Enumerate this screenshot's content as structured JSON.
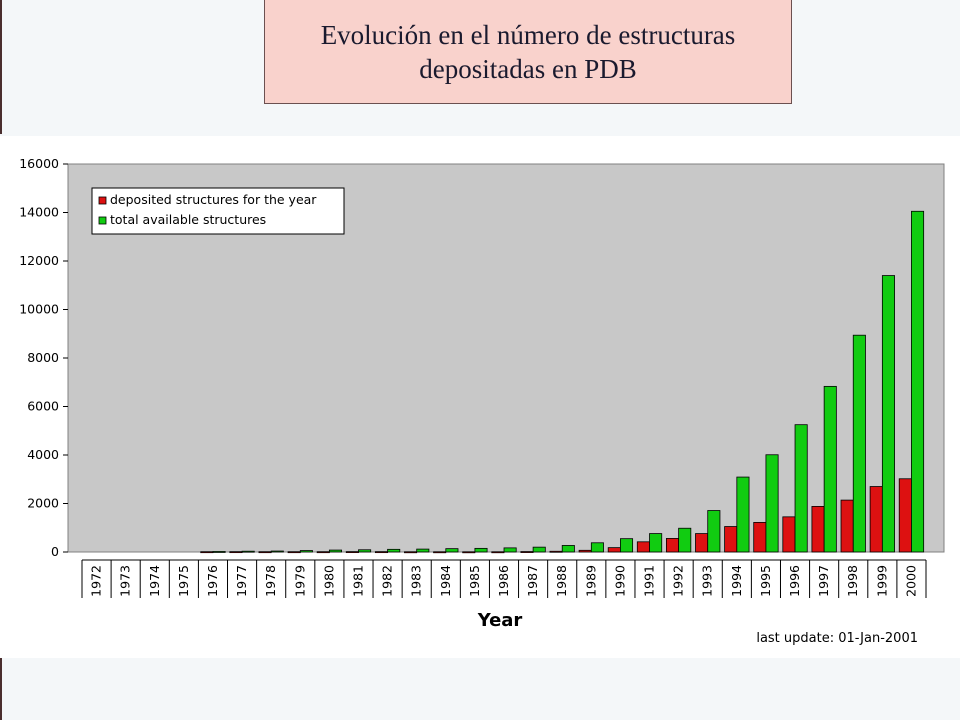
{
  "slide": {
    "title_line1": "Evolución en el número de estructuras",
    "title_line2": "depositadas en PDB"
  },
  "chart_data": {
    "type": "bar",
    "xlabel": "Year",
    "ylabel": "",
    "ylim": [
      0,
      16000
    ],
    "yticks": [
      0,
      2000,
      4000,
      6000,
      8000,
      10000,
      12000,
      14000,
      16000
    ],
    "categories": [
      "1972",
      "1973",
      "1974",
      "1975",
      "1976",
      "1977",
      "1978",
      "1979",
      "1980",
      "1981",
      "1982",
      "1983",
      "1984",
      "1985",
      "1986",
      "1987",
      "1988",
      "1989",
      "1990",
      "1991",
      "1992",
      "1993",
      "1994",
      "1995",
      "1996",
      "1997",
      "1998",
      "1999",
      "2000"
    ],
    "series": [
      {
        "name": "deposited structures for the year",
        "color": "#dd1111",
        "values": [
          0,
          0,
          0,
          0,
          13,
          15,
          13,
          13,
          13,
          16,
          15,
          10,
          10,
          9,
          10,
          18,
          30,
          70,
          180,
          420,
          560,
          760,
          1050,
          1220,
          1450,
          1880,
          2140,
          2700,
          3020
        ]
      },
      {
        "name": "total available structures",
        "color": "#11cc11",
        "values": [
          0,
          0,
          0,
          0,
          22,
          33,
          40,
          60,
          80,
          92,
          110,
          120,
          138,
          150,
          170,
          200,
          270,
          380,
          550,
          760,
          980,
          1710,
          3090,
          4010,
          5250,
          6830,
          8940,
          11400,
          14050
        ]
      }
    ],
    "legend_position": "top-left",
    "grid": false,
    "background": "#c8c8c8",
    "annotation": "last update: 01-Jan-2001"
  }
}
